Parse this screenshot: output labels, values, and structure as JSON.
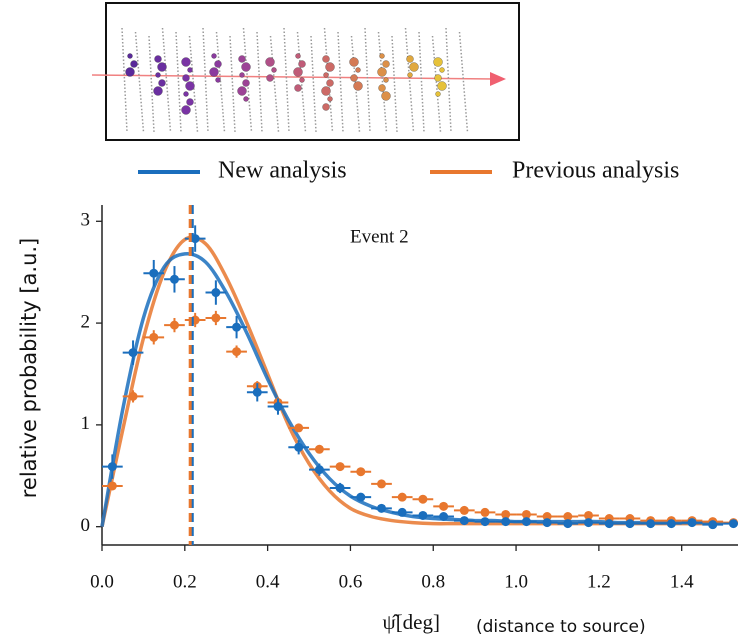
{
  "chart_data": {
    "type": "scatter",
    "annotation": "Event 2",
    "xlabel": "ψ̂[deg]",
    "xlabel_note": "(distance to source)",
    "ylabel": "relative probability [a.u.]",
    "xlim": [
      0,
      1.536
    ],
    "ylim": [
      -0.18,
      3.16
    ],
    "xticks": [
      {
        "value": 0,
        "label": "0.0"
      },
      0.2,
      0.4,
      0.6,
      0.8,
      {
        "value": 1,
        "label": "1.0"
      },
      1.2,
      1.4
    ],
    "yticks": [
      0,
      1,
      2,
      3
    ],
    "x": [
      0.025,
      0.075,
      0.125,
      0.175,
      0.225,
      0.275,
      0.325,
      0.375,
      0.425,
      0.475,
      0.525,
      0.575,
      0.625,
      0.675,
      0.725,
      0.775,
      0.825,
      0.875,
      0.925,
      0.975,
      1.025,
      1.075,
      1.125,
      1.175,
      1.225,
      1.275,
      1.325,
      1.375,
      1.425,
      1.475,
      1.525
    ],
    "curve_x": [
      0,
      0.05,
      0.1,
      0.15,
      0.2,
      0.25,
      0.3,
      0.35,
      0.4,
      0.45,
      0.5,
      0.55,
      0.6,
      0.65,
      0.7,
      0.75,
      0.8,
      0.85,
      0.9,
      0.95,
      1,
      1.05,
      1.1,
      1.15,
      1.2,
      1.25,
      1.3,
      1.35,
      1.4,
      1.45,
      1.5
    ],
    "series": [
      {
        "name": "Previous analysis",
        "color": "#e8772e",
        "vline": 0.213,
        "values": [
          0.4,
          1.28,
          1.86,
          1.98,
          2.03,
          2.05,
          1.72,
          1.38,
          1.22,
          0.97,
          0.76,
          0.59,
          0.54,
          0.42,
          0.29,
          0.27,
          0.2,
          0.16,
          0.14,
          0.12,
          0.12,
          0.1,
          0.1,
          0.11,
          0.08,
          0.08,
          0.06,
          0.06,
          0.06,
          0.05,
          0.04
        ],
        "errors": [
          0.04,
          0.06,
          0.07,
          0.07,
          0.07,
          0.07,
          0.06,
          0.05,
          0.05,
          0.04,
          0.04,
          0.03,
          0.03,
          0.03,
          0.02,
          0.02,
          0.02,
          0.02,
          0.02,
          0.02,
          0.02,
          0.02,
          0.02,
          0.02,
          0.02,
          0.02,
          0.02,
          0.02,
          0.02,
          0.02,
          0.02
        ],
        "curve_values": [
          0,
          0.95,
          1.85,
          2.5,
          2.82,
          2.78,
          2.45,
          2.0,
          1.5,
          1.0,
          0.62,
          0.35,
          0.18,
          0.1,
          0.06,
          0.04,
          0.03,
          0.03,
          0.03,
          0.03,
          0.03,
          0.03,
          0.03,
          0.03,
          0.03,
          0.03,
          0.03,
          0.03,
          0.03,
          0.03,
          0.03
        ]
      },
      {
        "name": "New analysis",
        "color": "#1a6ebd",
        "vline": 0.218,
        "values": [
          0.59,
          1.71,
          2.49,
          2.43,
          2.83,
          2.3,
          1.96,
          1.32,
          1.18,
          0.78,
          0.56,
          0.38,
          0.29,
          0.18,
          0.14,
          0.11,
          0.1,
          0.06,
          0.05,
          0.05,
          0.05,
          0.04,
          0.03,
          0.04,
          0.03,
          0.03,
          0.03,
          0.03,
          0.04,
          0.02,
          0.03
        ],
        "errors": [
          0.12,
          0.12,
          0.13,
          0.13,
          0.13,
          0.12,
          0.11,
          0.09,
          0.08,
          0.07,
          0.06,
          0.05,
          0.04,
          0.04,
          0.03,
          0.03,
          0.03,
          0.03,
          0.03,
          0.03,
          0.03,
          0.03,
          0.03,
          0.03,
          0.03,
          0.03,
          0.03,
          0.03,
          0.03,
          0.03,
          0.03
        ],
        "curve_values": [
          0,
          1.15,
          2.05,
          2.55,
          2.68,
          2.6,
          2.3,
          1.9,
          1.45,
          1.05,
          0.72,
          0.47,
          0.3,
          0.2,
          0.14,
          0.1,
          0.08,
          0.07,
          0.06,
          0.06,
          0.05,
          0.05,
          0.05,
          0.05,
          0.05,
          0.04,
          0.04,
          0.04,
          0.04,
          0.04,
          0.04
        ]
      }
    ]
  }
}
